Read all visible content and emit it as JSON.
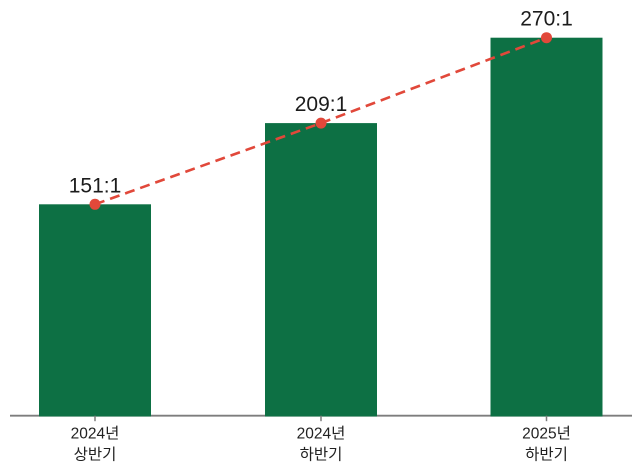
{
  "chart_data": {
    "type": "bar",
    "categories": [
      "2024년 상반기",
      "2024년 하반기",
      "2025년 하반기"
    ],
    "values": [
      151,
      209,
      270
    ],
    "value_labels": [
      "151:1",
      "209:1",
      "270:1"
    ],
    "title": "",
    "xlabel": "",
    "ylabel": "",
    "ylim": [
      0,
      295
    ],
    "grid": false,
    "legend": "none",
    "overlay_line": {
      "type": "line",
      "style": "dashed",
      "marker": "circle",
      "connects": "bar tops"
    },
    "colors": {
      "bar": "#0d7044",
      "trend_line": "#e1483a",
      "marker": "#e1483a",
      "axis": "#7d7d7d",
      "value_label_text": "#1c1c1c",
      "category_label_text": "#222222",
      "background": "#ffffff"
    }
  }
}
